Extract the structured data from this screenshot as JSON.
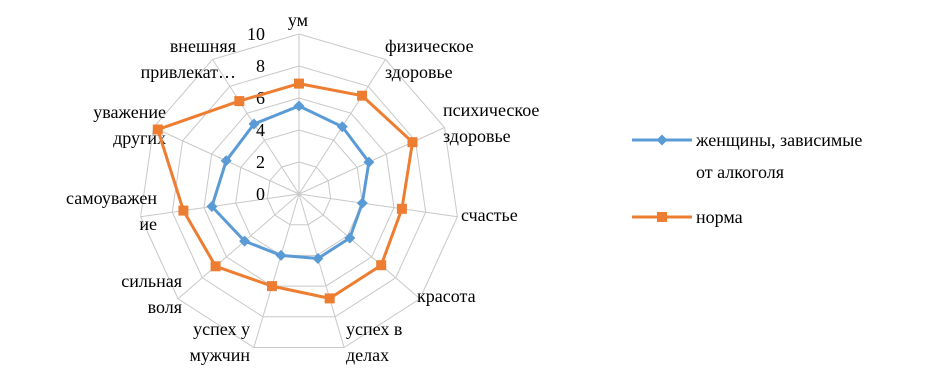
{
  "chart_data": {
    "type": "radar",
    "title": "",
    "categories": [
      "ум",
      "физическое здоровье",
      "психическое здоровье",
      "счастье",
      "красота",
      "успех в делах",
      "успех у мужчин",
      "сильная воля",
      "самоуважение",
      "уважение других",
      "внешняя привлекательность"
    ],
    "category_label_lines": [
      [
        "ум"
      ],
      [
        "физическое",
        "здоровье"
      ],
      [
        "психическое",
        "здоровье"
      ],
      [
        "счастье"
      ],
      [
        "красота"
      ],
      [
        "успех в",
        "делах"
      ],
      [
        "успех у",
        "мужчин"
      ],
      [
        "сильная",
        "воля"
      ],
      [
        "самоуважен",
        "ие"
      ],
      [
        "уважение",
        "других"
      ],
      [
        "внешняя",
        "привлекат…"
      ]
    ],
    "rlim": [
      0,
      10
    ],
    "ticks": [
      "0",
      "2",
      "4",
      "6",
      "8",
      "10"
    ],
    "tick_values": [
      0,
      2,
      4,
      6,
      8,
      10
    ],
    "grid": true,
    "legend_position": "right",
    "series": [
      {
        "name": "женщины, зависимые от алкоголя",
        "name_lines": [
          "женщины, зависимые",
          "от алкоголя"
        ],
        "color": "#5B9BD5",
        "marker": "diamond",
        "values": [
          5.5,
          5.0,
          4.8,
          4.0,
          4.2,
          4.2,
          4.0,
          4.5,
          5.5,
          5.0,
          5.2
        ]
      },
      {
        "name": "норма",
        "name_lines": [
          "норма"
        ],
        "color": "#ED7D31",
        "marker": "square",
        "values": [
          6.9,
          7.3,
          7.8,
          6.5,
          6.8,
          6.8,
          6.0,
          6.9,
          7.3,
          9.7,
          6.9
        ]
      }
    ]
  }
}
